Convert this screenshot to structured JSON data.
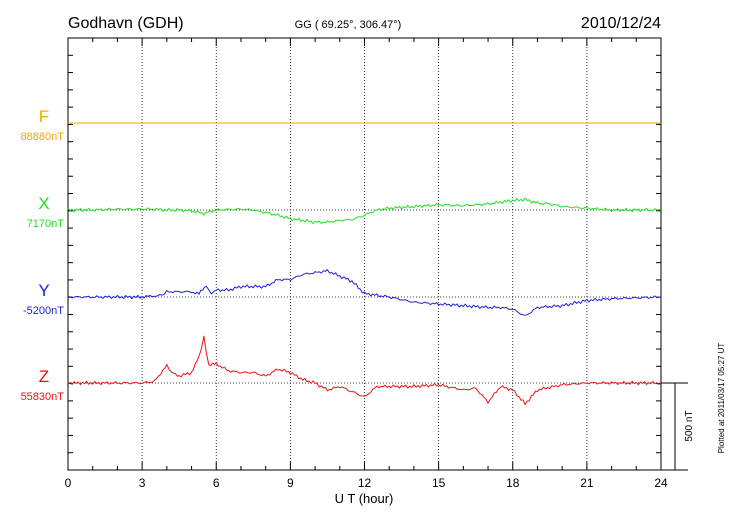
{
  "chart_data": {
    "type": "line",
    "title": "Godhavn (GDH)",
    "subtitle": "GG ( 69.25°, 306.47°)",
    "date": "2010/12/24",
    "xlabel": "U T (hour)",
    "xlim": [
      0,
      24
    ],
    "x_ticks": [
      "0",
      "3",
      "6",
      "9",
      "12",
      "15",
      "18",
      "21",
      "24"
    ],
    "grid": true,
    "scale_label": "500 nT",
    "scale_nT": 500,
    "plotted_note": "Plotted at 2011/03/17 05:27 UT",
    "series": [
      {
        "name": "F",
        "baseline_label": "88880nT",
        "color": "#f0a800",
        "x": [
          0,
          3,
          6,
          9,
          12,
          15,
          18,
          21,
          24
        ],
        "y": [
          0,
          0,
          0,
          0,
          0,
          0,
          0,
          0,
          0
        ]
      },
      {
        "name": "X",
        "baseline_label": "7170nT",
        "color": "#22dd22",
        "x": [
          0,
          1,
          2,
          3,
          3.5,
          4,
          4.5,
          5,
          5.5,
          6,
          7,
          7.5,
          8,
          8.5,
          9,
          9.5,
          10,
          10.5,
          11,
          11.5,
          12,
          12.5,
          13,
          14,
          15,
          16,
          17,
          17.5,
          18,
          18.5,
          19,
          19.5,
          20,
          21,
          22,
          23,
          24
        ],
        "y": [
          0,
          0,
          5,
          5,
          5,
          0,
          0,
          -5,
          -20,
          0,
          5,
          0,
          -15,
          -30,
          -50,
          -60,
          -70,
          -70,
          -60,
          -55,
          -30,
          0,
          10,
          20,
          30,
          25,
          35,
          45,
          55,
          60,
          40,
          35,
          20,
          10,
          0,
          0,
          0
        ]
      },
      {
        "name": "Y",
        "baseline_label": "-5200nT",
        "color": "#2020dd",
        "x": [
          0,
          2,
          3,
          3.8,
          4,
          4.5,
          5,
          5.3,
          5.6,
          5.8,
          6,
          6.5,
          7,
          7.5,
          8,
          8.5,
          9,
          9.5,
          10,
          10.5,
          11,
          11.5,
          12,
          13,
          14,
          15,
          16,
          17,
          17.5,
          18,
          18.5,
          19,
          20,
          21,
          22,
          24
        ],
        "y": [
          0,
          0,
          0,
          10,
          30,
          30,
          30,
          20,
          60,
          20,
          40,
          40,
          60,
          60,
          60,
          100,
          100,
          130,
          140,
          150,
          120,
          90,
          20,
          0,
          -30,
          -40,
          -50,
          -60,
          -60,
          -70,
          -110,
          -60,
          -50,
          -20,
          -10,
          0
        ]
      },
      {
        "name": "Z",
        "baseline_label": "55830nT",
        "color": "#ee1111",
        "x": [
          0,
          2,
          3,
          3.5,
          4,
          4.2,
          4.5,
          5,
          5.3,
          5.5,
          5.7,
          6,
          6.5,
          7,
          7.5,
          8,
          8.5,
          9,
          9.5,
          10,
          10.5,
          11,
          11.5,
          12,
          12.5,
          13,
          14,
          15,
          16,
          16.5,
          17,
          17.5,
          18,
          18.5,
          19,
          20,
          21,
          22,
          24
        ],
        "y": [
          0,
          0,
          0,
          10,
          100,
          60,
          40,
          60,
          150,
          260,
          100,
          110,
          70,
          60,
          60,
          40,
          80,
          60,
          20,
          0,
          -40,
          -20,
          -50,
          -80,
          -20,
          -20,
          -20,
          -10,
          -40,
          -30,
          -110,
          -20,
          -40,
          -120,
          -40,
          -10,
          0,
          0,
          0
        ]
      }
    ]
  }
}
